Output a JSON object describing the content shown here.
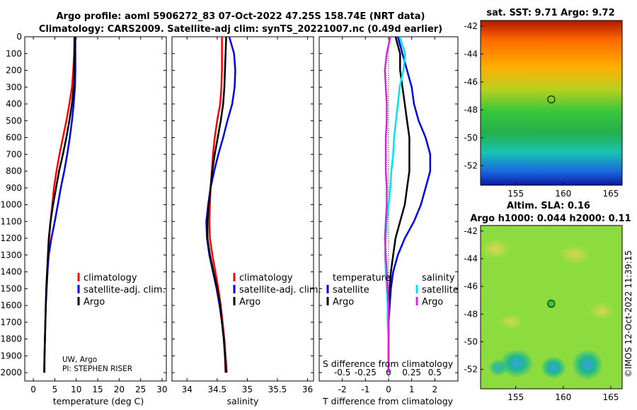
{
  "figure": {
    "title_line1": "Argo profile: aoml 5906272_83 07-Oct-2022 47.25S 158.74E (NRT data)",
    "title_line2": "Climatology: CARS2009. Satellite-adj clim: synTS_20221007.nc (0.49d earlier)",
    "credit": "UW, Argo",
    "pi": "PI: STEPHEN RISER",
    "timestamp": "©IMOS 12-Oct-2022 11:39:15"
  },
  "colors": {
    "climatology": "#ff0000",
    "satellite": "#0000ee",
    "argo": "#000000",
    "sal_sat": "#00e5ee",
    "sal_argo": "#e020e0"
  },
  "chart_data": [
    {
      "type": "line",
      "id": "temperature",
      "xlabel": "temperature (deg C)",
      "xlim": [
        -2,
        31
      ],
      "ylim": [
        0,
        2050
      ],
      "y_reversed": true,
      "xticks": [
        0,
        5,
        10,
        15,
        20,
        25,
        30
      ],
      "yticks": [
        0,
        100,
        200,
        300,
        400,
        500,
        600,
        700,
        800,
        900,
        1000,
        1100,
        1200,
        1300,
        1400,
        1500,
        1600,
        1700,
        1800,
        1900,
        2000
      ],
      "legend": [
        "climatology",
        "satellite-adj. clim.",
        "Argo"
      ],
      "depth": [
        0,
        100,
        200,
        300,
        400,
        500,
        600,
        700,
        800,
        900,
        1000,
        1100,
        1200,
        1300,
        1400,
        1500,
        1600,
        1700,
        1800,
        1900,
        2000
      ],
      "series": [
        {
          "name": "climatology",
          "color": "#ff0000",
          "values": [
            9.6,
            9.5,
            9.3,
            9.0,
            8.4,
            7.7,
            6.9,
            6.1,
            5.4,
            4.8,
            4.4,
            4.0,
            3.7,
            3.5,
            3.3,
            3.1,
            2.9,
            2.8,
            2.7,
            2.6,
            2.5
          ]
        },
        {
          "name": "satellite-adj. clim.",
          "color": "#0000ee",
          "values": [
            9.8,
            9.8,
            9.8,
            9.7,
            9.4,
            9.0,
            8.5,
            7.9,
            7.2,
            6.4,
            5.7,
            5.0,
            4.2,
            3.6,
            3.3,
            3.1,
            2.9,
            2.8,
            2.7,
            2.6,
            2.5
          ]
        },
        {
          "name": "Argo",
          "color": "#000000",
          "values": [
            9.6,
            9.6,
            9.5,
            9.4,
            9.0,
            8.4,
            7.7,
            6.9,
            6.0,
            5.3,
            4.6,
            4.0,
            3.6,
            3.4,
            3.2,
            3.0,
            2.9,
            2.8,
            2.7,
            2.6,
            2.6
          ]
        }
      ]
    },
    {
      "type": "line",
      "id": "salinity",
      "xlabel": "salinity",
      "xlim": [
        33.75,
        36.1
      ],
      "ylim": [
        0,
        2050
      ],
      "y_reversed": true,
      "xticks": [
        34,
        34.5,
        35,
        35.5,
        36
      ],
      "legend": [
        "climatology",
        "satellite-adj. clim.",
        "Argo"
      ],
      "depth": [
        0,
        100,
        200,
        300,
        400,
        500,
        600,
        700,
        800,
        900,
        1000,
        1100,
        1200,
        1300,
        1400,
        1500,
        1600,
        1700,
        1800,
        1900,
        2000
      ],
      "series": [
        {
          "name": "climatology",
          "color": "#ff0000",
          "values": [
            34.58,
            34.58,
            34.58,
            34.57,
            34.55,
            34.5,
            34.46,
            34.43,
            34.41,
            34.39,
            34.38,
            34.37,
            34.38,
            34.42,
            34.47,
            34.52,
            34.56,
            34.59,
            34.62,
            34.64,
            34.66
          ]
        },
        {
          "name": "satellite-adj. clim.",
          "color": "#0000ee",
          "values": [
            34.7,
            34.78,
            34.8,
            34.79,
            34.75,
            34.67,
            34.6,
            34.52,
            34.45,
            34.39,
            34.35,
            34.32,
            34.33,
            34.37,
            34.43,
            34.49,
            34.54,
            34.58,
            34.61,
            34.63,
            34.64
          ]
        },
        {
          "name": "Argo",
          "color": "#000000",
          "values": [
            34.65,
            34.64,
            34.63,
            34.62,
            34.6,
            34.56,
            34.51,
            34.46,
            34.42,
            34.39,
            34.36,
            34.34,
            34.34,
            34.38,
            34.44,
            34.5,
            34.55,
            34.58,
            34.61,
            34.63,
            34.65
          ]
        }
      ]
    },
    {
      "type": "line",
      "id": "difference",
      "xlabel": "T difference from climatology",
      "xlabel2": "S difference from climatology",
      "xlim": [
        -3,
        3
      ],
      "xlim_salinity": [
        -0.75,
        0.75
      ],
      "ylim": [
        0,
        2050
      ],
      "y_reversed": true,
      "xticks": [
        -2,
        -1,
        0,
        1,
        2
      ],
      "xticks_salinity": [
        "-0.5",
        "-0.25",
        "0",
        "0.25",
        "0.5"
      ],
      "legend_temperature_title": "temperature",
      "legend_salinity_title": "salinity",
      "legend": [
        "satellite",
        "Argo",
        "satellite",
        "Argo"
      ],
      "depth": [
        0,
        100,
        200,
        300,
        400,
        500,
        600,
        700,
        800,
        900,
        1000,
        1100,
        1200,
        1300,
        1400,
        1500,
        1600,
        1700,
        1800,
        1900,
        2000
      ],
      "series": [
        {
          "name": "T satellite",
          "color": "#0000ee",
          "values": [
            0.4,
            0.6,
            0.8,
            1.0,
            1.1,
            1.3,
            1.6,
            1.8,
            1.8,
            1.6,
            1.4,
            1.1,
            0.7,
            0.4,
            0.2,
            0.1,
            0.05,
            0.0,
            0.0,
            0.0,
            0.0
          ]
        },
        {
          "name": "T Argo",
          "color": "#000000",
          "values": [
            0.3,
            0.5,
            0.5,
            0.6,
            0.7,
            0.8,
            0.9,
            0.9,
            0.9,
            0.8,
            0.7,
            0.5,
            0.3,
            0.2,
            0.1,
            0.05,
            0.0,
            0.0,
            0.0,
            0.0,
            0.0
          ]
        },
        {
          "name": "S satellite",
          "color": "#00e5ee",
          "values": [
            0.12,
            0.18,
            0.16,
            0.12,
            0.1,
            0.08,
            0.06,
            0.05,
            0.03,
            0.02,
            0.0,
            -0.02,
            -0.03,
            -0.04,
            -0.03,
            -0.02,
            -0.01,
            -0.01,
            0.0,
            0.0,
            0.0
          ]
        },
        {
          "name": "S Argo",
          "color": "#e020e0",
          "values": [
            0.02,
            -0.02,
            -0.04,
            -0.03,
            -0.02,
            -0.02,
            -0.03,
            -0.03,
            -0.03,
            -0.02,
            -0.02,
            -0.03,
            -0.04,
            -0.03,
            -0.02,
            -0.01,
            0.0,
            0.0,
            0.0,
            0.0,
            0.0
          ]
        }
      ]
    },
    {
      "type": "heatmap",
      "id": "sst_map",
      "title": "sat. SST: 9.71  Argo: 9.72",
      "xticks": [
        155,
        160,
        165
      ],
      "yticks": [
        -42,
        -44,
        -46,
        -48,
        -50,
        -52
      ],
      "xlim": [
        151.3,
        166.2
      ],
      "ylim": [
        -53.4,
        -41.6
      ],
      "argo_position": [
        158.74,
        -47.25
      ]
    },
    {
      "type": "heatmap",
      "id": "sla_map",
      "title_line1": "Altim. SLA: 0.16",
      "title_line2": "Argo h1000: 0.044 h2000: 0.11",
      "xticks": [
        155,
        160,
        165
      ],
      "yticks": [
        -42,
        -44,
        -46,
        -48,
        -50,
        -52
      ],
      "xlim": [
        151.3,
        166.2
      ],
      "ylim": [
        -53.4,
        -41.6
      ],
      "argo_position": [
        158.74,
        -47.25
      ]
    }
  ]
}
